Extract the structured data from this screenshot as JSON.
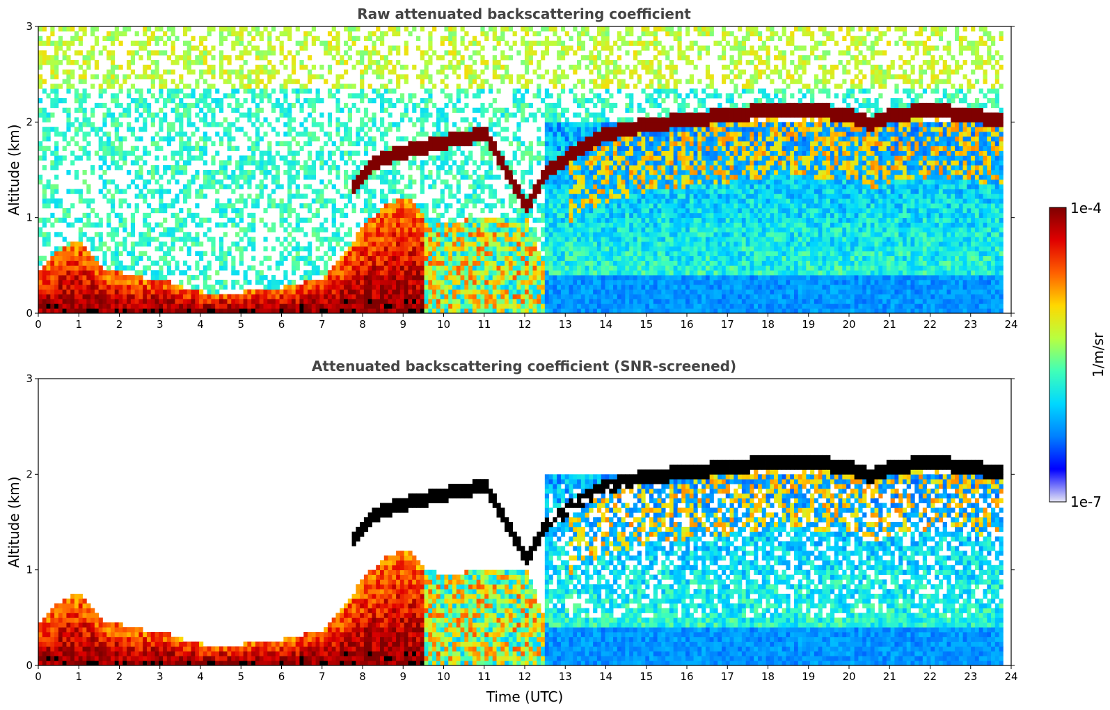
{
  "figure": {
    "colorbar": {
      "label": "1/m/sr",
      "max_label": "1e-4",
      "min_label": "1e-7",
      "colormap": "jet",
      "colors": [
        "#e6e6f5",
        "#0000ff",
        "#0080ff",
        "#00d8ff",
        "#40ffb8",
        "#b8ff40",
        "#ffd800",
        "#ff6000",
        "#e00000",
        "#7f0000"
      ]
    },
    "screened_below_color": "#000000"
  },
  "chart_data": [
    {
      "type": "heatmap",
      "title": "Raw attenuated backscattering coefficient",
      "xlabel": "",
      "ylabel": "Altitude (km)",
      "xlim": [
        0,
        24
      ],
      "ylim": [
        0,
        3
      ],
      "xticks": [
        "0",
        "1",
        "2",
        "3",
        "4",
        "5",
        "6",
        "7",
        "8",
        "9",
        "10",
        "11",
        "12",
        "13",
        "14",
        "15",
        "16",
        "17",
        "18",
        "19",
        "20",
        "21",
        "22",
        "23",
        "24"
      ],
      "yticks": [
        "0",
        "1",
        "2",
        "3"
      ],
      "value_scale": "log10 backscatter, 1e-7 to 1e-4 1/m/sr",
      "boundary_layer_top_km": {
        "time_utc": [
          0,
          0.5,
          1,
          1.5,
          2,
          2.5,
          3,
          3.5,
          4,
          5,
          6,
          7,
          7.5,
          8,
          8.5,
          9,
          9.5,
          10,
          11,
          12,
          12.5,
          13,
          14,
          15,
          16,
          17,
          18,
          19,
          20,
          21,
          22,
          23,
          23.8
        ],
        "altitude_km": [
          0.45,
          0.65,
          0.75,
          0.45,
          0.4,
          0.35,
          0.35,
          0.25,
          0.2,
          0.2,
          0.25,
          0.35,
          0.6,
          0.9,
          1.1,
          1.2,
          1.0,
          0.9,
          1.0,
          1.0,
          0.4,
          0.4,
          0.4,
          0.4,
          0.4,
          0.4,
          0.4,
          0.4,
          0.4,
          0.4,
          0.4,
          0.4,
          0.4
        ]
      },
      "cloud_layer_km": {
        "time_utc": [
          7.7,
          8.2,
          8.8,
          9.5,
          10.3,
          11.0,
          12.0,
          12.5,
          13.0,
          13.5,
          14.0,
          14.5,
          15.0,
          16.0,
          17.0,
          18.0,
          19.0,
          20.0,
          20.5,
          21.0,
          22.0,
          23.0,
          23.8
        ],
        "altitude_km": [
          1.3,
          1.55,
          1.65,
          1.72,
          1.8,
          1.85,
          1.1,
          1.45,
          1.6,
          1.75,
          1.85,
          1.9,
          1.95,
          2.0,
          2.05,
          2.1,
          2.1,
          2.05,
          1.95,
          2.05,
          2.1,
          2.05,
          1.98
        ]
      }
    },
    {
      "type": "heatmap",
      "title": "Attenuated backscattering coefficient (SNR-screened)",
      "xlabel": "Time (UTC)",
      "ylabel": "Altitude (km)",
      "xlim": [
        0,
        24
      ],
      "ylim": [
        0,
        3
      ],
      "xticks": [
        "0",
        "1",
        "2",
        "3",
        "4",
        "5",
        "6",
        "7",
        "8",
        "9",
        "10",
        "11",
        "12",
        "13",
        "14",
        "15",
        "16",
        "17",
        "18",
        "19",
        "20",
        "21",
        "22",
        "23",
        "24"
      ],
      "yticks": [
        "0",
        "1",
        "2",
        "3"
      ],
      "value_scale": "log10 backscatter, 1e-7 to 1e-4 1/m/sr; values above range shown black; low-SNR pixels removed (white)"
    }
  ]
}
